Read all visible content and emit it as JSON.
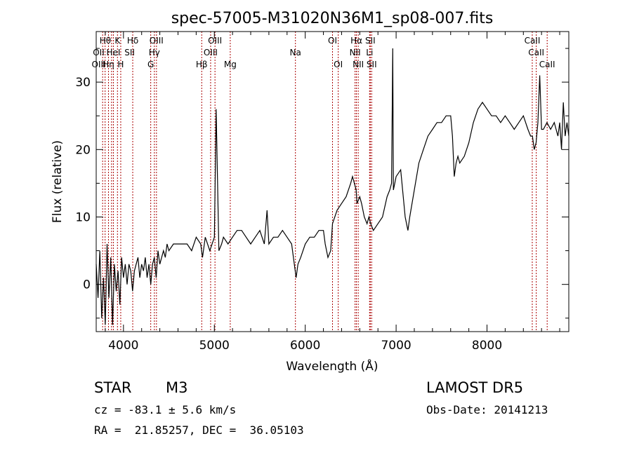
{
  "chart_data": {
    "type": "line",
    "title": "spec-57005-M31020N36M1_sp08-007.fits",
    "xlabel": "Wavelength (Å)",
    "ylabel": "Flux (relative)",
    "xlim": [
      3700,
      8900
    ],
    "ylim": [
      -7,
      37.5
    ],
    "xticks": [
      4000,
      5000,
      6000,
      7000,
      8000
    ],
    "yticks": [
      0,
      10,
      20,
      30
    ],
    "grid": false,
    "series_color": "#000000",
    "line_color": "#aa0000",
    "series": [
      {
        "x": [
          3700,
          3720,
          3740,
          3760,
          3780,
          3800,
          3820,
          3840,
          3860,
          3880,
          3900,
          3920,
          3940,
          3960,
          3980,
          4000,
          4020,
          4040,
          4060,
          4080,
          4100,
          4120,
          4140,
          4160,
          4180,
          4200,
          4220,
          4240,
          4260,
          4280,
          4300,
          4320,
          4340,
          4360,
          4380,
          4400,
          4420,
          4440,
          4460,
          4480,
          4500,
          4550,
          4600,
          4650,
          4700,
          4750,
          4800,
          4850,
          4870,
          4900,
          4950,
          5000,
          5020,
          5050,
          5080,
          5100,
          5150,
          5200,
          5250,
          5300,
          5350,
          5400,
          5450,
          5500,
          5550,
          5580,
          5600,
          5650,
          5700,
          5750,
          5800,
          5850,
          5880,
          5900,
          5920,
          5950,
          6000,
          6050,
          6100,
          6150,
          6200,
          6220,
          6250,
          6280,
          6300,
          6350,
          6400,
          6450,
          6500,
          6520,
          6540,
          6560,
          6570,
          6600,
          6620,
          6650,
          6680,
          6700,
          6720,
          6750,
          6800,
          6850,
          6900,
          6930,
          6950,
          6963,
          6970,
          6985,
          7000,
          7050,
          7100,
          7130,
          7150,
          7200,
          7250,
          7300,
          7350,
          7400,
          7450,
          7500,
          7550,
          7600,
          7620,
          7640,
          7660,
          7680,
          7700,
          7750,
          7800,
          7850,
          7900,
          7950,
          8000,
          8050,
          8100,
          8150,
          8200,
          8250,
          8300,
          8350,
          8400,
          8450,
          8480,
          8500,
          8520,
          8540,
          8560,
          8580,
          8600,
          8620,
          8660,
          8700,
          8740,
          8760,
          8780,
          8800,
          8820,
          8840,
          8860,
          8880,
          8900
        ],
        "y": [
          3,
          -2,
          5,
          -5,
          1,
          -6,
          6,
          -2,
          4,
          -6,
          3,
          -1,
          2,
          -3,
          4,
          1,
          3,
          0,
          3,
          2,
          -1,
          2,
          3,
          4,
          1,
          3,
          2,
          4,
          1,
          3,
          0,
          3,
          4,
          1,
          5,
          3,
          4,
          5,
          4,
          6,
          5,
          6,
          6,
          6,
          6,
          5,
          7,
          6,
          4,
          7,
          5,
          7,
          26,
          5,
          6,
          7,
          6,
          7,
          8,
          8,
          7,
          6,
          7,
          8,
          6,
          11,
          6,
          7,
          7,
          8,
          7,
          6,
          3,
          1,
          3,
          4,
          6,
          7,
          7,
          8,
          8,
          6,
          4,
          5,
          9,
          11,
          12,
          13,
          15,
          16,
          15,
          14,
          12,
          13,
          12,
          10,
          9,
          10,
          9,
          8,
          9,
          10,
          13,
          14,
          15,
          35,
          14,
          15,
          16,
          17,
          10,
          8,
          10,
          14,
          18,
          20,
          22,
          23,
          24,
          24,
          25,
          25,
          22,
          16,
          18,
          19,
          18,
          19,
          21,
          24,
          26,
          27,
          26,
          25,
          25,
          24,
          25,
          24,
          23,
          24,
          25,
          23,
          22,
          22,
          20,
          21,
          24,
          31,
          23,
          23,
          24,
          23,
          24,
          23,
          22,
          24,
          20,
          27,
          22,
          24,
          22
        ]
      }
    ],
    "line_marks": [
      3771,
      3798,
      3835,
      3869,
      3889,
      3934,
      3970,
      4102,
      4300,
      4340,
      4363,
      4861,
      4959,
      5007,
      5175,
      5892,
      6300,
      6363,
      6548,
      6563,
      6583,
      6708,
      6716,
      6731,
      8498,
      8542,
      8662
    ],
    "line_labels": [
      {
        "text": "Hθ",
        "x": 3800,
        "row": 1
      },
      {
        "text": "K",
        "x": 3934,
        "row": 1
      },
      {
        "text": "Hδ",
        "x": 4102,
        "row": 1
      },
      {
        "text": "OIII",
        "x": 4363,
        "row": 1
      },
      {
        "text": "OIII",
        "x": 5007,
        "row": 1
      },
      {
        "text": "OI",
        "x": 6300,
        "row": 1
      },
      {
        "text": "Hα",
        "x": 6563,
        "row": 1
      },
      {
        "text": "SII",
        "x": 6716,
        "row": 1
      },
      {
        "text": "CaII",
        "x": 8498,
        "row": 1
      },
      {
        "text": "OII",
        "x": 3727,
        "row": 2
      },
      {
        "text": "HeI",
        "x": 3889,
        "row": 2
      },
      {
        "text": "SII",
        "x": 4068,
        "row": 2
      },
      {
        "text": "Hγ",
        "x": 4340,
        "row": 2
      },
      {
        "text": "OIII",
        "x": 4959,
        "row": 2
      },
      {
        "text": "NII",
        "x": 6548,
        "row": 2
      },
      {
        "text": "Li",
        "x": 6708,
        "row": 2
      },
      {
        "text": "CaII",
        "x": 8542,
        "row": 2
      },
      {
        "text": "OIII",
        "x": 3727,
        "row": 3
      },
      {
        "text": "Hη",
        "x": 3835,
        "row": 3
      },
      {
        "text": "H",
        "x": 3970,
        "row": 3
      },
      {
        "text": "G",
        "x": 4300,
        "row": 3
      },
      {
        "text": "Hβ",
        "x": 4861,
        "row": 3
      },
      {
        "text": "Mg",
        "x": 5175,
        "row": 3
      },
      {
        "text": "Na",
        "x": 5892,
        "row": 2
      },
      {
        "text": "OI",
        "x": 6363,
        "row": 3
      },
      {
        "text": "NII",
        "x": 6583,
        "row": 3
      },
      {
        "text": "SII",
        "x": 6731,
        "row": 3
      },
      {
        "text": "CaII",
        "x": 8662,
        "row": 3
      }
    ]
  },
  "info": {
    "object_class": "STAR",
    "subclass": "M3",
    "survey": "LAMOST DR5",
    "cz": "cz = -83.1 ± 5.6 km/s",
    "obs_date": "Obs-Date: 20141213",
    "coords": "RA =  21.85257, DEC =  36.05103"
  }
}
